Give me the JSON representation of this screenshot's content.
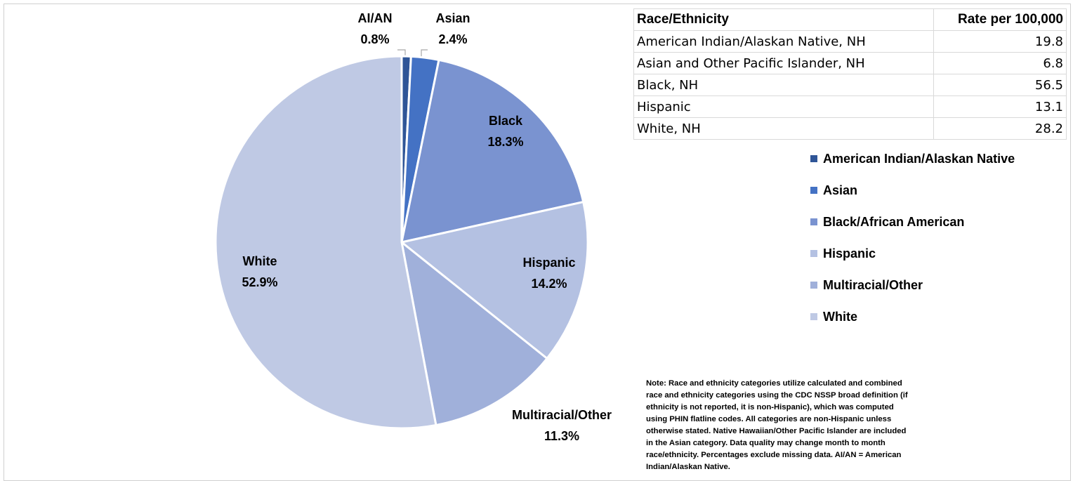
{
  "chart_data": {
    "type": "pie",
    "categories": [
      "AI/AN",
      "Asian",
      "Black",
      "Hispanic",
      "Multiracial/Other",
      "White"
    ],
    "values": [
      0.8,
      2.4,
      18.3,
      14.2,
      11.3,
      52.9
    ],
    "value_labels": [
      "0.8%",
      "2.4%",
      "18.3%",
      "14.2%",
      "11.3%",
      "52.9%"
    ],
    "legend": [
      "American Indian/Alaskan Native",
      "Asian",
      "Black/African American",
      "Hispanic",
      "Multiracial/Other",
      "White"
    ],
    "colors": [
      "#2f5597",
      "#4472c4",
      "#7a93d0",
      "#b4c1e2",
      "#a0b0da",
      "#bfc9e4"
    ]
  },
  "table": {
    "header": [
      "Race/Ethnicity",
      "Rate per 100,000"
    ],
    "rows": [
      [
        "American Indian/Alaskan Native, NH",
        19.8
      ],
      [
        "Asian and Other Pacific Islander, NH",
        6.8
      ],
      [
        "Black, NH",
        56.5
      ],
      [
        "Hispanic",
        13.1
      ],
      [
        "White, NH",
        28.2
      ]
    ]
  },
  "note": "Note: Race and ethnicity categories utilize calculated and combined race and ethnicity categories using the CDC NSSP broad definition (if ethnicity is not reported, it is non-Hispanic), which was computed using PHIN flatline codes. All categories are non-Hispanic unless otherwise stated. Native Hawaiian/Other Pacific Islander are included in the Asian category. Data quality may change month to month race/ethnicity. Percentages exclude missing data. AI/AN = American Indian/Alaskan Native."
}
